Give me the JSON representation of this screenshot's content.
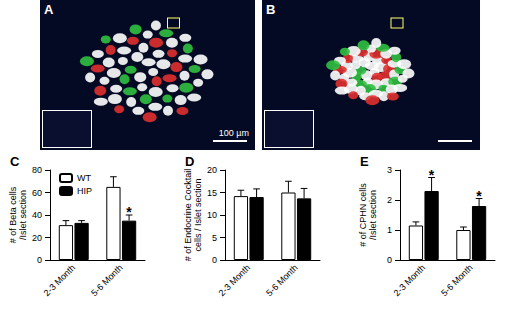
{
  "images": [
    {
      "label": "A",
      "scale_bar": "100 µm"
    },
    {
      "label": "B"
    }
  ],
  "chart_data": [
    {
      "type": "bar",
      "title": "C",
      "ylabel": "# of Beta cells\n/Islet section",
      "categories": [
        "2-3 Month",
        "5-6 Month"
      ],
      "series": [
        {
          "name": "WT",
          "color": "#ffffff",
          "values": [
            31,
            65
          ],
          "errors": [
            4,
            9
          ]
        },
        {
          "name": "HIP",
          "color": "#000000",
          "values": [
            33,
            35
          ],
          "errors": [
            2,
            5
          ]
        }
      ],
      "ylim": [
        0,
        80
      ],
      "yticks": [
        0,
        20,
        40,
        60,
        80
      ],
      "grid": false,
      "legend": "top-left",
      "annotations": [
        {
          "text": "*",
          "category": "5-6 Month",
          "series": "HIP"
        }
      ]
    },
    {
      "type": "bar",
      "title": "D",
      "ylabel": "# of Endocrine Cocktail\ncells / Islet section",
      "categories": [
        "2-3 Month",
        "5-6 Month"
      ],
      "series": [
        {
          "name": "WT",
          "color": "#ffffff",
          "values": [
            14.2,
            15
          ],
          "errors": [
            1.3,
            2.5
          ]
        },
        {
          "name": "HIP",
          "color": "#000000",
          "values": [
            14,
            13.7
          ],
          "errors": [
            1.8,
            2.2
          ]
        }
      ],
      "ylim": [
        0,
        20
      ],
      "yticks": [
        0,
        5,
        10,
        15,
        20
      ],
      "grid": false
    },
    {
      "type": "bar",
      "title": "E",
      "ylabel": "# of CPHN cells\n/Islet section",
      "categories": [
        "2-3 Month",
        "5-6 Month"
      ],
      "series": [
        {
          "name": "WT",
          "color": "#ffffff",
          "values": [
            1.15,
            1.0
          ],
          "errors": [
            0.12,
            0.1
          ]
        },
        {
          "name": "HIP",
          "color": "#000000",
          "values": [
            2.3,
            1.8
          ],
          "errors": [
            0.45,
            0.25
          ]
        }
      ],
      "ylim": [
        0,
        3
      ],
      "yticks": [
        0,
        1,
        2,
        3
      ],
      "grid": false,
      "annotations": [
        {
          "text": "*",
          "category": "2-3 Month",
          "series": "HIP"
        },
        {
          "text": "*",
          "category": "5-6 Month",
          "series": "HIP"
        }
      ]
    }
  ]
}
